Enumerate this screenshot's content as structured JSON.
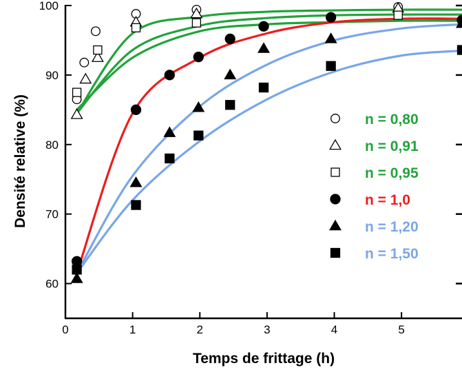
{
  "chart_data": {
    "type": "scatter",
    "xlabel": "Temps de frittage (h)",
    "ylabel": "Densité relative (%)",
    "xlim": [
      0,
      5.9
    ],
    "ylim": [
      55,
      100
    ],
    "xticks": [
      "0",
      "1",
      "2",
      "3",
      "4",
      "5"
    ],
    "yticks": [
      "60",
      "70",
      "80",
      "90",
      "100"
    ],
    "grid": false,
    "legend_position": "right",
    "marker_names": {
      "circle-open": "open-circle-marker",
      "triangle-open": "open-triangle-marker",
      "square-open": "open-square-marker",
      "circle-filled": "filled-circle-marker",
      "triangle-filled": "filled-triangle-marker",
      "square-filled": "filled-square-marker"
    },
    "series": [
      {
        "name": "n = 0,80",
        "color": "#22a33a",
        "marker": "circle-open",
        "x": [
          0.17,
          0.28,
          0.45,
          1.05,
          1.95,
          4.95
        ],
        "y": [
          86.5,
          91.8,
          96.3,
          98.8,
          99.4,
          99.8
        ],
        "fit_y": [
          84.5,
          96.0,
          98.4,
          99.1,
          99.3,
          99.4,
          99.4
        ]
      },
      {
        "name": "n = 0,91",
        "color": "#22a33a",
        "marker": "triangle-open",
        "x": [
          0.17,
          0.3,
          0.48,
          1.05,
          1.95,
          4.95
        ],
        "y": [
          84.3,
          89.4,
          92.5,
          97.6,
          98.8,
          99.6
        ],
        "fit_y": [
          84.5,
          93.6,
          97.1,
          98.2,
          98.6,
          98.7,
          98.7
        ]
      },
      {
        "name": "n = 0,95",
        "color": "#22a33a",
        "marker": "square-open",
        "x": [
          0.17,
          0.48,
          1.05,
          1.95,
          4.95
        ],
        "y": [
          87.5,
          93.6,
          96.8,
          97.5,
          98.6
        ],
        "fit_y": [
          85.0,
          92.5,
          96.3,
          97.3,
          97.6,
          97.8,
          97.8
        ]
      },
      {
        "name": "n = 1,0",
        "color": "#ee1c1c",
        "marker": "circle-filled",
        "x": [
          0.17,
          1.05,
          1.55,
          1.98,
          2.45,
          2.95,
          3.95,
          5.9
        ],
        "y": [
          63.2,
          85.0,
          90.0,
          92.6,
          95.2,
          97.0,
          98.3,
          97.9
        ],
        "fit_y": [
          61.5,
          84.5,
          92.5,
          96.0,
          97.6,
          98.1,
          98.1
        ]
      },
      {
        "name": "n = 1,20",
        "color": "#7aa6e8",
        "marker": "triangle-filled",
        "x": [
          0.17,
          1.05,
          1.55,
          1.98,
          2.45,
          2.95,
          3.95,
          5.9
        ],
        "y": [
          60.7,
          74.5,
          81.7,
          85.3,
          90.0,
          93.8,
          95.2,
          97.4
        ],
        "fit_y": [
          61.5,
          75.5,
          85.5,
          91.5,
          95.0,
          96.7,
          97.3
        ]
      },
      {
        "name": "n = 1,50",
        "color": "#7aa6e8",
        "marker": "square-filled",
        "x": [
          0.17,
          1.05,
          1.55,
          1.98,
          2.45,
          2.95,
          3.95,
          5.9
        ],
        "y": [
          62.0,
          71.3,
          78.0,
          81.3,
          85.7,
          88.2,
          91.3,
          93.6
        ],
        "fit_y": [
          61.5,
          72.0,
          80.5,
          86.5,
          90.5,
          92.8,
          93.5
        ]
      }
    ],
    "fit_x": [
      0.17,
      1.0,
      2.0,
      3.0,
      4.0,
      5.0,
      5.9
    ]
  }
}
